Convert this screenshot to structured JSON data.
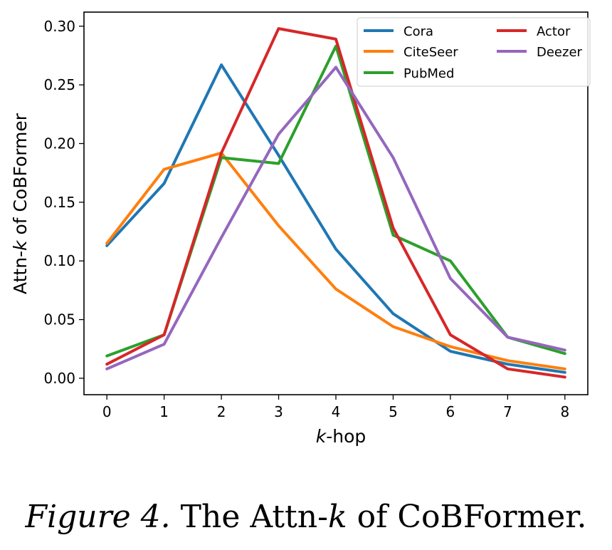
{
  "chart_data": {
    "type": "line",
    "x": [
      0,
      1,
      2,
      3,
      4,
      5,
      6,
      7,
      8
    ],
    "xlabel_var": "k",
    "xlabel_rest": "-hop",
    "ylabel_pre": "Attn-",
    "ylabel_var": "k",
    "ylabel_post": " of CoBFormer",
    "xlim": [
      -0.4,
      8.4
    ],
    "ylim": [
      -0.014,
      0.312
    ],
    "xticks": [
      "0",
      "1",
      "2",
      "3",
      "4",
      "5",
      "6",
      "7",
      "8"
    ],
    "yticks": [
      "0.00",
      "0.05",
      "0.10",
      "0.15",
      "0.20",
      "0.25",
      "0.30"
    ],
    "ytick_values": [
      0.0,
      0.05,
      0.1,
      0.15,
      0.2,
      0.25,
      0.3
    ],
    "legend_position": "top-right",
    "series": [
      {
        "name": "Cora",
        "color": "#1f77b4",
        "values": [
          0.113,
          0.166,
          0.267,
          0.19,
          0.11,
          0.055,
          0.023,
          0.012,
          0.005
        ]
      },
      {
        "name": "CiteSeer",
        "color": "#ff7f0e",
        "values": [
          0.115,
          0.178,
          0.192,
          0.13,
          0.076,
          0.044,
          0.027,
          0.015,
          0.008
        ]
      },
      {
        "name": "PubMed",
        "color": "#2ca02c",
        "values": [
          0.019,
          0.037,
          0.188,
          0.183,
          0.283,
          0.122,
          0.1,
          0.035,
          0.021
        ]
      },
      {
        "name": "Actor",
        "color": "#d62728",
        "values": [
          0.012,
          0.037,
          0.192,
          0.298,
          0.289,
          0.128,
          0.037,
          0.008,
          0.001
        ]
      },
      {
        "name": "Deezer",
        "color": "#9467bd",
        "values": [
          0.008,
          0.029,
          0.12,
          0.208,
          0.265,
          0.188,
          0.085,
          0.035,
          0.024
        ]
      }
    ]
  },
  "caption": {
    "figure_label": "Figure 4.",
    "text_pre": " The Attn-",
    "text_var": "k",
    "text_post": " of CoBFormer."
  }
}
